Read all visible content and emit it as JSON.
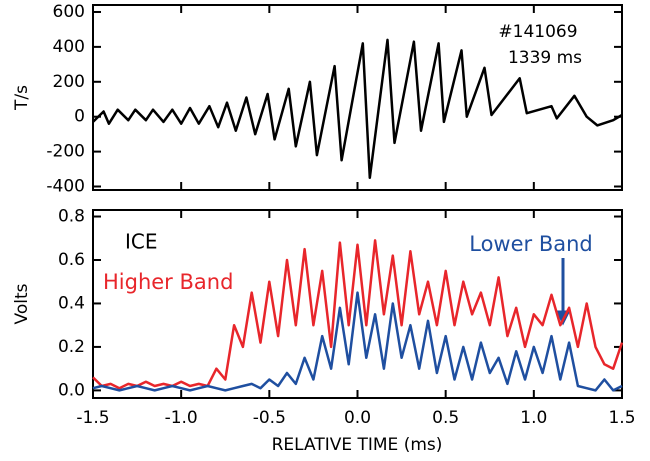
{
  "chart_data": [
    {
      "type": "line",
      "ylabel": "T/s",
      "color": "#000000",
      "annotations": [
        "#141069",
        "1339 ms"
      ],
      "ylim": [
        -420,
        640
      ],
      "yticks": [
        600,
        400,
        200,
        0,
        -200,
        -400
      ],
      "x": [
        -1.5,
        -1.44,
        -1.41,
        -1.36,
        -1.3,
        -1.26,
        -1.2,
        -1.16,
        -1.1,
        -1.05,
        -1.0,
        -0.95,
        -0.9,
        -0.84,
        -0.79,
        -0.74,
        -0.69,
        -0.63,
        -0.58,
        -0.51,
        -0.47,
        -0.39,
        -0.35,
        -0.27,
        -0.23,
        -0.13,
        -0.09,
        0.03,
        0.07,
        0.17,
        0.21,
        0.32,
        0.36,
        0.46,
        0.49,
        0.59,
        0.62,
        0.72,
        0.76,
        0.92,
        0.96,
        1.1,
        1.13,
        1.23,
        1.3,
        1.36,
        1.45,
        1.5
      ],
      "values": [
        -30,
        30,
        -40,
        40,
        -20,
        40,
        -20,
        40,
        -30,
        40,
        -40,
        50,
        -40,
        60,
        -60,
        80,
        -80,
        110,
        -100,
        130,
        -130,
        160,
        -170,
        200,
        -220,
        290,
        -250,
        420,
        -350,
        440,
        -150,
        430,
        -80,
        420,
        -30,
        380,
        0,
        280,
        10,
        220,
        20,
        60,
        -10,
        120,
        0,
        -50,
        -20,
        10
      ]
    },
    {
      "type": "line",
      "xlabel": "RELATIVE TIME (ms)",
      "ylabel": "Volts",
      "annotations": [
        "ICE"
      ],
      "xlim": [
        -1.5,
        1.5
      ],
      "xticks": [
        {
          "value": -1.5,
          "label": "-1.5"
        },
        {
          "value": -1,
          "label": "-1.0"
        },
        {
          "value": -0.5,
          "label": "-0.5"
        },
        {
          "value": 0,
          "label": "0.0"
        },
        {
          "value": 0.5,
          "label": "0.5"
        },
        {
          "value": 1,
          "label": "1.0"
        },
        {
          "value": 1.5,
          "label": "1.5"
        }
      ],
      "ylim": [
        -0.035,
        0.83
      ],
      "yticks": [
        {
          "value": 0,
          "label": "0.0"
        },
        {
          "value": 0.2,
          "label": "0.2"
        },
        {
          "value": 0.4,
          "label": "0.4"
        },
        {
          "value": 0.6,
          "label": "0.6"
        },
        {
          "value": 0.8,
          "label": "0.8"
        }
      ],
      "x": [
        -1.5,
        -1.45,
        -1.4,
        -1.35,
        -1.3,
        -1.25,
        -1.2,
        -1.15,
        -1.1,
        -1.05,
        -1.0,
        -0.95,
        -0.9,
        -0.85,
        -0.8,
        -0.75,
        -0.7,
        -0.65,
        -0.6,
        -0.55,
        -0.5,
        -0.45,
        -0.4,
        -0.35,
        -0.3,
        -0.25,
        -0.2,
        -0.15,
        -0.1,
        -0.05,
        0.0,
        0.05,
        0.1,
        0.15,
        0.2,
        0.25,
        0.3,
        0.35,
        0.4,
        0.45,
        0.5,
        0.55,
        0.6,
        0.65,
        0.7,
        0.75,
        0.8,
        0.85,
        0.9,
        0.95,
        1.0,
        1.05,
        1.1,
        1.15,
        1.2,
        1.25,
        1.3,
        1.35,
        1.4,
        1.45,
        1.5
      ],
      "series": [
        {
          "name": "Higher Band",
          "color": "#e8262b",
          "values": [
            0.06,
            0.02,
            0.03,
            0.01,
            0.03,
            0.02,
            0.04,
            0.02,
            0.03,
            0.02,
            0.04,
            0.02,
            0.03,
            0.02,
            0.1,
            0.05,
            0.3,
            0.2,
            0.45,
            0.22,
            0.5,
            0.25,
            0.6,
            0.3,
            0.65,
            0.3,
            0.55,
            0.2,
            0.68,
            0.3,
            0.67,
            0.3,
            0.69,
            0.35,
            0.62,
            0.3,
            0.64,
            0.35,
            0.5,
            0.3,
            0.55,
            0.3,
            0.5,
            0.35,
            0.45,
            0.3,
            0.52,
            0.25,
            0.38,
            0.2,
            0.35,
            0.3,
            0.44,
            0.3,
            0.38,
            0.2,
            0.4,
            0.2,
            0.12,
            0.1,
            0.22
          ]
        },
        {
          "name": "Lower Band",
          "color": "#1f4fa0",
          "values": [
            0.01,
            0.02,
            0.01,
            0.0,
            0.01,
            0.02,
            0.01,
            0.0,
            0.01,
            0.02,
            0.01,
            0.0,
            0.01,
            0.02,
            0.01,
            0.0,
            0.01,
            0.02,
            0.03,
            0.01,
            0.05,
            0.02,
            0.08,
            0.03,
            0.15,
            0.05,
            0.25,
            0.1,
            0.38,
            0.12,
            0.45,
            0.15,
            0.35,
            0.1,
            0.4,
            0.15,
            0.3,
            0.1,
            0.32,
            0.08,
            0.25,
            0.05,
            0.2,
            0.05,
            0.22,
            0.08,
            0.15,
            0.03,
            0.18,
            0.05,
            0.2,
            0.08,
            0.25,
            0.05,
            0.22,
            0.02,
            0.01,
            0.0,
            0.05,
            0.0,
            0.02
          ]
        }
      ]
    }
  ]
}
